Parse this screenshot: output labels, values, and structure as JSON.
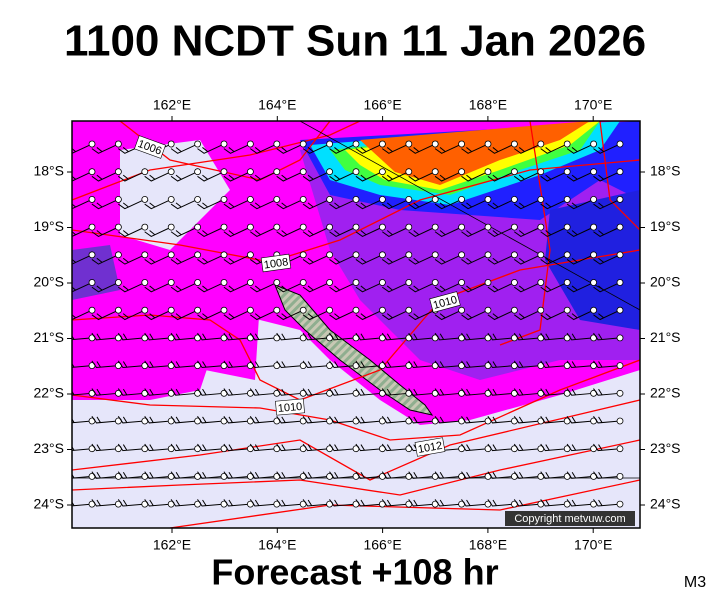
{
  "title": "1100 NCDT Sun 11 Jan 2026",
  "footer": "Forecast +108 hr",
  "model": "M3",
  "copyright": "Copyright metvuw.com",
  "lon_labels": [
    "162°E",
    "164°E",
    "166°E",
    "168°E",
    "170°E"
  ],
  "lat_labels": [
    "18°S",
    "19°S",
    "20°S",
    "21°S",
    "22°S",
    "23°S",
    "24°S"
  ],
  "isobar_labels": [
    "1006",
    "1008",
    "1010",
    "1010",
    "1012"
  ]
}
